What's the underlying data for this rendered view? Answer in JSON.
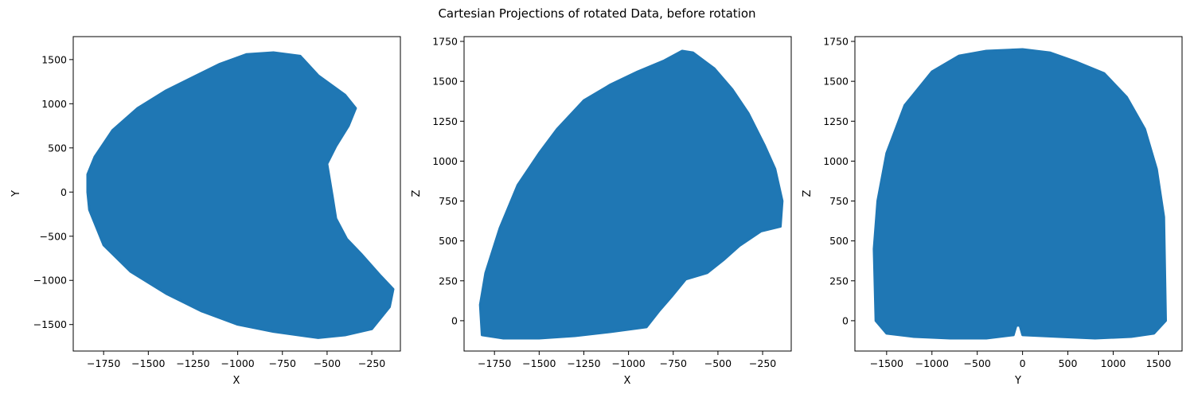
{
  "figure": {
    "title": "Cartesian Projections of rotated Data, before rotation",
    "point_color": "#1f77b4"
  },
  "chart_data": [
    {
      "type": "scatter",
      "xlabel": "X",
      "ylabel": "Y",
      "xlim": [
        -1920,
        -90
      ],
      "ylim": [
        -1800,
        1760
      ],
      "xticks": [
        -1750,
        -1500,
        -1250,
        -1000,
        -750,
        -500,
        -250
      ],
      "yticks": [
        -1500,
        -1000,
        -500,
        0,
        500,
        1000,
        1500
      ],
      "grid": false,
      "series_shape": [
        [
          -1840,
          200
        ],
        [
          -1800,
          400
        ],
        [
          -1700,
          700
        ],
        [
          -1560,
          950
        ],
        [
          -1400,
          1150
        ],
        [
          -1250,
          1300
        ],
        [
          -1100,
          1450
        ],
        [
          -950,
          1560
        ],
        [
          -800,
          1580
        ],
        [
          -650,
          1540
        ],
        [
          -550,
          1320
        ],
        [
          -400,
          1100
        ],
        [
          -340,
          950
        ],
        [
          -380,
          750
        ],
        [
          -450,
          520
        ],
        [
          -500,
          320
        ],
        [
          -470,
          -50
        ],
        [
          -450,
          -300
        ],
        [
          -390,
          -530
        ],
        [
          -310,
          -700
        ],
        [
          -200,
          -950
        ],
        [
          -130,
          -1100
        ],
        [
          -150,
          -1300
        ],
        [
          -250,
          -1550
        ],
        [
          -400,
          -1620
        ],
        [
          -550,
          -1650
        ],
        [
          -800,
          -1580
        ],
        [
          -1000,
          -1500
        ],
        [
          -1200,
          -1350
        ],
        [
          -1400,
          -1150
        ],
        [
          -1600,
          -900
        ],
        [
          -1750,
          -600
        ],
        [
          -1830,
          -200
        ],
        [
          -1840,
          0
        ]
      ]
    },
    {
      "type": "scatter",
      "xlabel": "X",
      "ylabel": "Z",
      "xlim": [
        -1920,
        -90
      ],
      "ylim": [
        -190,
        1780
      ],
      "xticks": [
        -1750,
        -1500,
        -1250,
        -1000,
        -750,
        -500,
        -250
      ],
      "yticks": [
        0,
        250,
        500,
        750,
        1000,
        1250,
        1500,
        1750
      ],
      "grid": false,
      "series_shape": [
        [
          -1820,
          -90
        ],
        [
          -1700,
          -110
        ],
        [
          -1500,
          -110
        ],
        [
          -1300,
          -95
        ],
        [
          -1100,
          -70
        ],
        [
          -900,
          -40
        ],
        [
          -830,
          60
        ],
        [
          -760,
          150
        ],
        [
          -680,
          260
        ],
        [
          -560,
          300
        ],
        [
          -470,
          380
        ],
        [
          -380,
          470
        ],
        [
          -260,
          560
        ],
        [
          -150,
          590
        ],
        [
          -140,
          750
        ],
        [
          -180,
          950
        ],
        [
          -240,
          1100
        ],
        [
          -330,
          1300
        ],
        [
          -420,
          1450
        ],
        [
          -520,
          1580
        ],
        [
          -640,
          1680
        ],
        [
          -700,
          1690
        ],
        [
          -800,
          1630
        ],
        [
          -950,
          1560
        ],
        [
          -1100,
          1480
        ],
        [
          -1250,
          1380
        ],
        [
          -1400,
          1200
        ],
        [
          -1500,
          1050
        ],
        [
          -1620,
          850
        ],
        [
          -1720,
          580
        ],
        [
          -1800,
          300
        ],
        [
          -1830,
          100
        ]
      ]
    },
    {
      "type": "scatter",
      "xlabel": "Y",
      "ylabel": "Z",
      "xlim": [
        -1850,
        1760
      ],
      "ylim": [
        -190,
        1780
      ],
      "xticks": [
        -1500,
        -1000,
        -500,
        0,
        500,
        1000,
        1500
      ],
      "yticks": [
        0,
        250,
        500,
        750,
        1000,
        1250,
        1500,
        1750
      ],
      "grid": false,
      "series_shape": [
        [
          -1640,
          450
        ],
        [
          -1600,
          750
        ],
        [
          -1500,
          1050
        ],
        [
          -1300,
          1350
        ],
        [
          -1000,
          1560
        ],
        [
          -700,
          1660
        ],
        [
          -400,
          1690
        ],
        [
          0,
          1700
        ],
        [
          300,
          1680
        ],
        [
          600,
          1620
        ],
        [
          900,
          1550
        ],
        [
          1150,
          1400
        ],
        [
          1350,
          1200
        ],
        [
          1480,
          950
        ],
        [
          1560,
          650
        ],
        [
          1580,
          0
        ],
        [
          1450,
          -80
        ],
        [
          1200,
          -100
        ],
        [
          800,
          -110
        ],
        [
          400,
          -100
        ],
        [
          0,
          -90
        ],
        [
          -30,
          -30
        ],
        [
          -70,
          -30
        ],
        [
          -100,
          -90
        ],
        [
          -400,
          -110
        ],
        [
          -800,
          -110
        ],
        [
          -1200,
          -100
        ],
        [
          -1500,
          -80
        ],
        [
          -1620,
          0
        ]
      ]
    }
  ]
}
